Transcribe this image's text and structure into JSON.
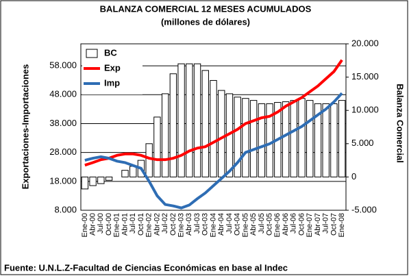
{
  "chart_data": {
    "type": "bar_line",
    "title": "BALANZA COMERCIAL 12 MESES ACUMULADOS",
    "subtitle": "(millones de dólares)",
    "ylabel": "Exportaciones-Importaciones",
    "y2label": "Balanza Comercial",
    "source": "Fuente: U.N.L.Z-Facultad de Ciencias Económicas en base al Indec",
    "categories": [
      "Ene-00",
      "Abr-00",
      "Jul-00",
      "Oct-00",
      "Ene-01",
      "Abr-01",
      "Jul-01",
      "Oct-01",
      "Ene-02",
      "Abr-02",
      "Jul-02",
      "Oct-02",
      "Ene-03",
      "Abr-03",
      "Jul-03",
      "Oct-03",
      "Ene-04",
      "Abr-04",
      "Jul-04",
      "Oct-04",
      "Ene-05",
      "Abr-05",
      "Jul-05",
      "Oct-05",
      "Ene-06",
      "Abr-06",
      "Jul-06",
      "Oct-06",
      "Ene-07",
      "Abr-07",
      "Jul-07",
      "Oct-07",
      "Ene-08"
    ],
    "series": [
      {
        "name": "BC",
        "type": "bar",
        "axis": "y2",
        "color": "#ffffff",
        "values": [
          -1800,
          -1300,
          -1000,
          -500,
          0,
          1000,
          1600,
          2500,
          5000,
          9000,
          12500,
          15500,
          17000,
          17000,
          17000,
          16000,
          14500,
          13000,
          12500,
          12000,
          11800,
          11500,
          11000,
          11000,
          11200,
          11300,
          11500,
          11800,
          11500,
          11000,
          11000,
          11000,
          11500
        ]
      },
      {
        "name": "Exp",
        "type": "line",
        "color": "#ff0000",
        "values": [
          23600,
          24500,
          25500,
          26000,
          27000,
          27500,
          27500,
          27000,
          26000,
          25500,
          25500,
          26000,
          27000,
          28500,
          29500,
          30000,
          31500,
          33000,
          34500,
          36000,
          38000,
          39000,
          40000,
          40500,
          42000,
          44000,
          45500,
          47000,
          49000,
          51000,
          53500,
          56000,
          60000
        ]
      },
      {
        "name": "Imp",
        "type": "line",
        "color": "#2e6db4",
        "values": [
          25300,
          26000,
          26500,
          26000,
          25000,
          24500,
          23500,
          22500,
          18000,
          13000,
          10000,
          9500,
          8800,
          9800,
          12000,
          14000,
          16500,
          19000,
          21500,
          24500,
          28000,
          29000,
          30000,
          31000,
          32500,
          34000,
          35500,
          37000,
          39000,
          41000,
          43000,
          45500,
          48500
        ]
      }
    ],
    "ylim": [
      8000,
      65600
    ],
    "yticks": [
      {
        "value": 8000,
        "label": "8.000"
      },
      {
        "value": 18000,
        "label": "18.000"
      },
      {
        "value": 28000,
        "label": "28.000"
      },
      {
        "value": 38000,
        "label": "38.000"
      },
      {
        "value": 48000,
        "label": "48.000"
      },
      {
        "value": 58000,
        "label": "58.000"
      }
    ],
    "y2lim": [
      -5000,
      20000
    ],
    "y2ticks": [
      {
        "value": -5000,
        "label": "-5.000"
      },
      0,
      {
        "value": 5000,
        "label": "5.000"
      },
      {
        "value": 10000,
        "label": "10.000"
      },
      {
        "value": 15000,
        "label": "15.000"
      },
      {
        "value": 20000,
        "label": "20.000"
      }
    ],
    "grid": true,
    "legend": "top-left"
  }
}
